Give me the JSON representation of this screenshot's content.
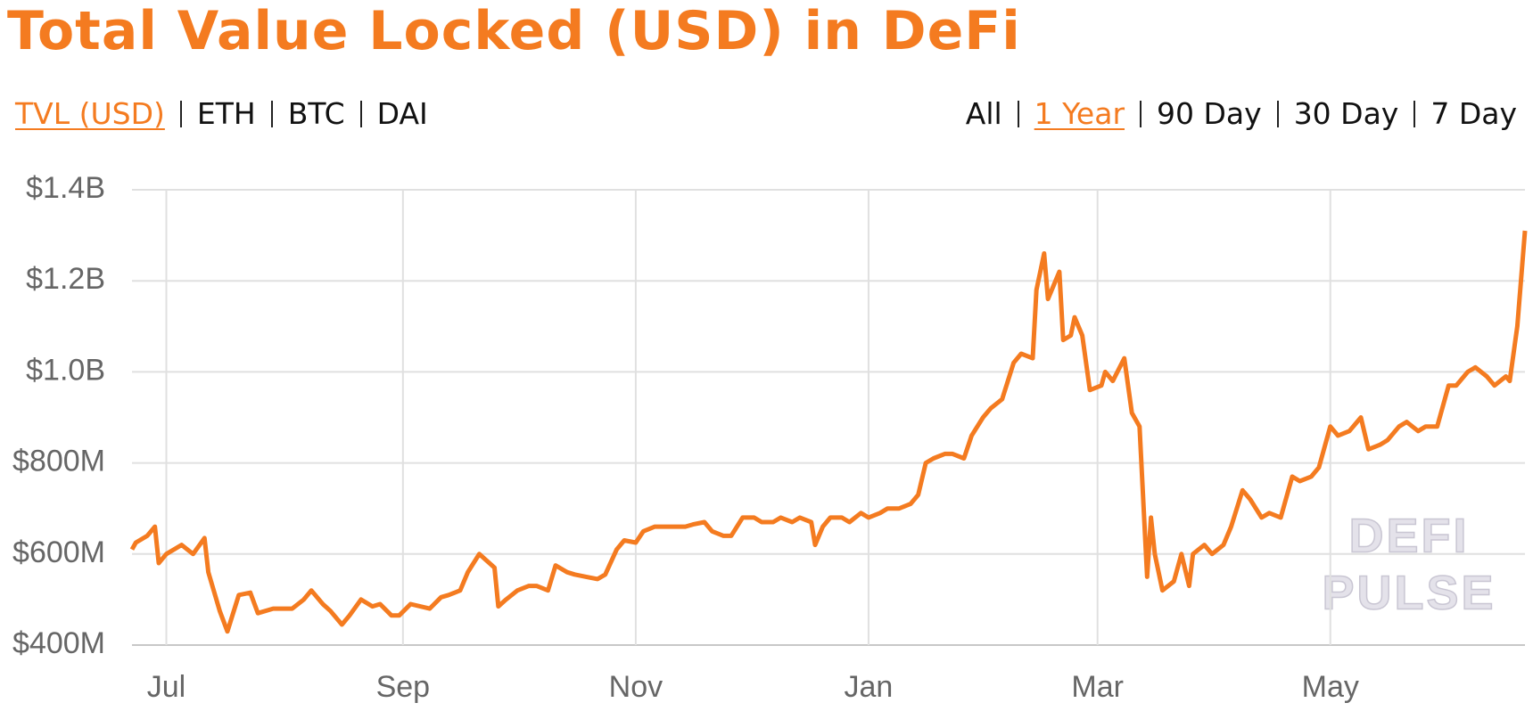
{
  "chart_data": {
    "type": "line",
    "title": "Total Value Locked (USD) in DeFi",
    "color": "#f47b20",
    "grid": true,
    "watermark": [
      "DEFI",
      "PULSE"
    ],
    "xlim": [
      0,
      365
    ],
    "xticks": [
      {
        "value": 9,
        "label": "Jul"
      },
      {
        "value": 71,
        "label": "Sep"
      },
      {
        "value": 132,
        "label": "Nov"
      },
      {
        "value": 193,
        "label": "Jan"
      },
      {
        "value": 253,
        "label": "Mar"
      },
      {
        "value": 314,
        "label": "May"
      }
    ],
    "ylim": [
      400000000,
      1400000000
    ],
    "yticks": [
      {
        "value": 400000000,
        "label": "$400M"
      },
      {
        "value": 600000000,
        "label": "$600M"
      },
      {
        "value": 800000000,
        "label": "$800M"
      },
      {
        "value": 1000000000,
        "label": "$1.0B"
      },
      {
        "value": 1200000000,
        "label": "$1.2B"
      },
      {
        "value": 1400000000,
        "label": "$1.4B"
      }
    ],
    "x": [
      0,
      1,
      4,
      6,
      7,
      9,
      13,
      16,
      19,
      20,
      23,
      25,
      28,
      31,
      33,
      37,
      42,
      45,
      47,
      50,
      52,
      55,
      57,
      60,
      63,
      65,
      68,
      70,
      73,
      78,
      81,
      83,
      86,
      88,
      91,
      93,
      95,
      96,
      98,
      101,
      104,
      106,
      109,
      111,
      114,
      116,
      119,
      122,
      124,
      127,
      129,
      132,
      134,
      137,
      139,
      142,
      145,
      147,
      150,
      152,
      155,
      157,
      160,
      163,
      165,
      168,
      170,
      173,
      175,
      178,
      179,
      181,
      183,
      186,
      188,
      191,
      193,
      196,
      198,
      201,
      204,
      206,
      208,
      210,
      213,
      215,
      218,
      220,
      223,
      225,
      228,
      231,
      233,
      236,
      237,
      239,
      240,
      243,
      244,
      246,
      247,
      249,
      251,
      254,
      255,
      257,
      260,
      262,
      264,
      266,
      267,
      268,
      270,
      273,
      275,
      277,
      278,
      281,
      283,
      286,
      288,
      291,
      293,
      296,
      298,
      301,
      304,
      306,
      309,
      311,
      314,
      316,
      319,
      322,
      324,
      327,
      329,
      332,
      334,
      337,
      339,
      342,
      345,
      347,
      350,
      352,
      355,
      357,
      360,
      361,
      363,
      365
    ],
    "values": [
      610000000,
      625000000,
      640000000,
      660000000,
      580000000,
      600000000,
      620000000,
      600000000,
      635000000,
      560000000,
      475000000,
      430000000,
      510000000,
      515000000,
      470000000,
      480000000,
      480000000,
      500000000,
      520000000,
      490000000,
      475000000,
      445000000,
      465000000,
      500000000,
      485000000,
      490000000,
      465000000,
      465000000,
      490000000,
      480000000,
      505000000,
      510000000,
      520000000,
      560000000,
      600000000,
      585000000,
      570000000,
      485000000,
      500000000,
      520000000,
      530000000,
      530000000,
      520000000,
      575000000,
      560000000,
      555000000,
      550000000,
      545000000,
      555000000,
      610000000,
      630000000,
      625000000,
      650000000,
      660000000,
      660000000,
      660000000,
      660000000,
      665000000,
      670000000,
      650000000,
      640000000,
      640000000,
      680000000,
      680000000,
      670000000,
      670000000,
      680000000,
      670000000,
      680000000,
      670000000,
      620000000,
      660000000,
      680000000,
      680000000,
      670000000,
      690000000,
      680000000,
      690000000,
      700000000,
      700000000,
      710000000,
      730000000,
      800000000,
      810000000,
      820000000,
      820000000,
      810000000,
      860000000,
      900000000,
      920000000,
      940000000,
      1020000000,
      1040000000,
      1030000000,
      1180000000,
      1260000000,
      1160000000,
      1220000000,
      1070000000,
      1080000000,
      1120000000,
      1080000000,
      960000000,
      970000000,
      1000000000,
      980000000,
      1030000000,
      910000000,
      880000000,
      550000000,
      680000000,
      600000000,
      520000000,
      540000000,
      600000000,
      530000000,
      600000000,
      620000000,
      600000000,
      620000000,
      660000000,
      740000000,
      720000000,
      680000000,
      690000000,
      680000000,
      770000000,
      760000000,
      770000000,
      790000000,
      880000000,
      860000000,
      870000000,
      900000000,
      830000000,
      840000000,
      850000000,
      880000000,
      890000000,
      870000000,
      880000000,
      880000000,
      970000000,
      970000000,
      1000000000,
      1010000000,
      990000000,
      970000000,
      990000000,
      980000000,
      1100000000,
      1310000000
    ]
  },
  "denomination_tabs": {
    "items": [
      "TVL (USD)",
      "ETH",
      "BTC",
      "DAI"
    ],
    "active": 0
  },
  "period_tabs": {
    "items": [
      "All",
      "1 Year",
      "90 Day",
      "30 Day",
      "7 Day"
    ],
    "active": 1
  }
}
